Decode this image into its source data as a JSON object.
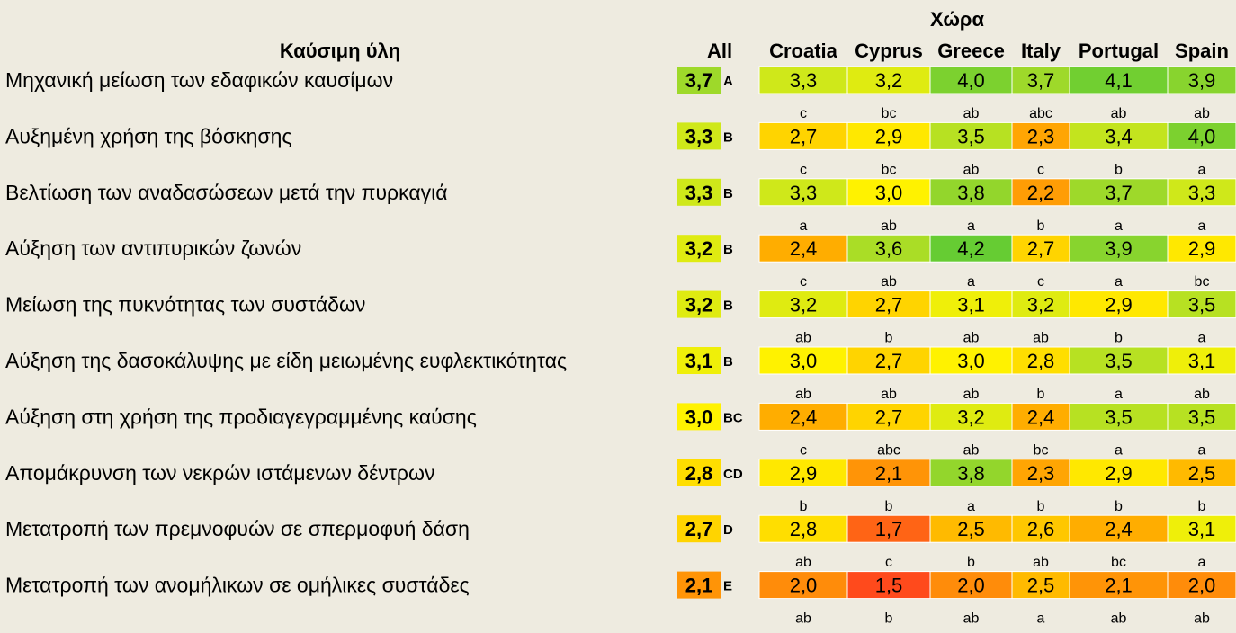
{
  "chart_data": {
    "type": "heatmap",
    "title": "Χώρα",
    "row_header": "Καύσιμη ύλη",
    "all_header": "All",
    "columns": [
      "Croatia",
      "Cyprus",
      "Greece",
      "Italy",
      "Portugal",
      "Spain"
    ],
    "rows": [
      {
        "label": "Μηχανική μείωση των εδαφικών καυσίμων",
        "all": "3,7",
        "all_value": 3.7,
        "all_group": "A",
        "values": [
          3.3,
          3.2,
          4.0,
          3.7,
          4.1,
          3.9
        ],
        "display": [
          "3,3",
          "3,2",
          "4,0",
          "3,7",
          "4,1",
          "3,9"
        ],
        "letters": [
          "c",
          "bc",
          "ab",
          "abc",
          "ab",
          "ab"
        ]
      },
      {
        "label": "Αυξημένη χρήση της βόσκησης",
        "all": "3,3",
        "all_value": 3.3,
        "all_group": "B",
        "values": [
          2.7,
          2.9,
          3.5,
          2.3,
          3.4,
          4.0
        ],
        "display": [
          "2,7",
          "2,9",
          "3,5",
          "2,3",
          "3,4",
          "4,0"
        ],
        "letters": [
          "c",
          "bc",
          "ab",
          "c",
          "b",
          "a"
        ]
      },
      {
        "label": "Βελτίωση των αναδασώσεων μετά την πυρκαγιά",
        "all": "3,3",
        "all_value": 3.3,
        "all_group": "B",
        "values": [
          3.3,
          3.0,
          3.8,
          2.2,
          3.7,
          3.3
        ],
        "display": [
          "3,3",
          "3,0",
          "3,8",
          "2,2",
          "3,7",
          "3,3"
        ],
        "letters": [
          "a",
          "ab",
          "a",
          "b",
          "a",
          "a"
        ]
      },
      {
        "label": "Αύξηση των αντιπυρικών ζωνών",
        "all": "3,2",
        "all_value": 3.2,
        "all_group": "B",
        "values": [
          2.4,
          3.6,
          4.2,
          2.7,
          3.9,
          2.9
        ],
        "display": [
          "2,4",
          "3,6",
          "4,2",
          "2,7",
          "3,9",
          "2,9"
        ],
        "letters": [
          "c",
          "ab",
          "a",
          "c",
          "a",
          "bc"
        ]
      },
      {
        "label": "Μείωση της πυκνότητας των συστάδων",
        "all": "3,2",
        "all_value": 3.2,
        "all_group": "B",
        "values": [
          3.2,
          2.7,
          3.1,
          3.2,
          2.9,
          3.5
        ],
        "display": [
          "3,2",
          "2,7",
          "3,1",
          "3,2",
          "2,9",
          "3,5"
        ],
        "letters": [
          "ab",
          "b",
          "ab",
          "ab",
          "b",
          "a"
        ]
      },
      {
        "label": "Αύξηση της δασοκάλυψης με είδη μειωμένης ευφλεκτικότητας",
        "all": "3,1",
        "all_value": 3.1,
        "all_group": "B",
        "values": [
          3.0,
          2.7,
          3.0,
          2.8,
          3.5,
          3.1
        ],
        "display": [
          "3,0",
          "2,7",
          "3,0",
          "2,8",
          "3,5",
          "3,1"
        ],
        "letters": [
          "ab",
          "ab",
          "ab",
          "b",
          "a",
          "ab"
        ]
      },
      {
        "label": "Αύξηση στη χρήση της προδιαγεγραμμένης καύσης",
        "all": "3,0",
        "all_value": 3.0,
        "all_group": "BC",
        "values": [
          2.4,
          2.7,
          3.2,
          2.4,
          3.5,
          3.5
        ],
        "display": [
          "2,4",
          "2,7",
          "3,2",
          "2,4",
          "3,5",
          "3,5"
        ],
        "letters": [
          "c",
          "abc",
          "ab",
          "bc",
          "a",
          "a"
        ]
      },
      {
        "label": "Απομάκρυνση των νεκρών ιστάμενων δέντρων",
        "all": "2,8",
        "all_value": 2.8,
        "all_group": "CD",
        "values": [
          2.9,
          2.1,
          3.8,
          2.3,
          2.9,
          2.5
        ],
        "display": [
          "2,9",
          "2,1",
          "3,8",
          "2,3",
          "2,9",
          "2,5"
        ],
        "letters": [
          "b",
          "b",
          "a",
          "b",
          "b",
          "b"
        ]
      },
      {
        "label": "Μετατροπή των πρεμνοφυών σε σπερμοφυή δάση",
        "all": "2,7",
        "all_value": 2.7,
        "all_group": "D",
        "values": [
          2.8,
          1.7,
          2.5,
          2.6,
          2.4,
          3.1
        ],
        "display": [
          "2,8",
          "1,7",
          "2,5",
          "2,6",
          "2,4",
          "3,1"
        ],
        "letters": [
          "ab",
          "c",
          "b",
          "ab",
          "bc",
          "a"
        ]
      },
      {
        "label": "Μετατροπή των ανομήλικων σε ομήλικες συστάδες",
        "all": "2,1",
        "all_value": 2.1,
        "all_group": "E",
        "values": [
          2.0,
          1.5,
          2.0,
          2.5,
          2.1,
          2.0
        ],
        "display": [
          "2,0",
          "1,5",
          "2,0",
          "2,5",
          "2,1",
          "2,0"
        ],
        "letters": [
          "ab",
          "b",
          "ab",
          "a",
          "ab",
          "ab"
        ]
      }
    ],
    "color_scale": {
      "stops": [
        {
          "value": 1.5,
          "color": "#ff4a1c"
        },
        {
          "value": 2.0,
          "color": "#ff8c0a"
        },
        {
          "value": 2.4,
          "color": "#ffad00"
        },
        {
          "value": 2.7,
          "color": "#ffd400"
        },
        {
          "value": 3.0,
          "color": "#fff200"
        },
        {
          "value": 3.3,
          "color": "#cfe81a"
        },
        {
          "value": 3.7,
          "color": "#9ed92a"
        },
        {
          "value": 4.2,
          "color": "#66cc33"
        }
      ]
    }
  }
}
